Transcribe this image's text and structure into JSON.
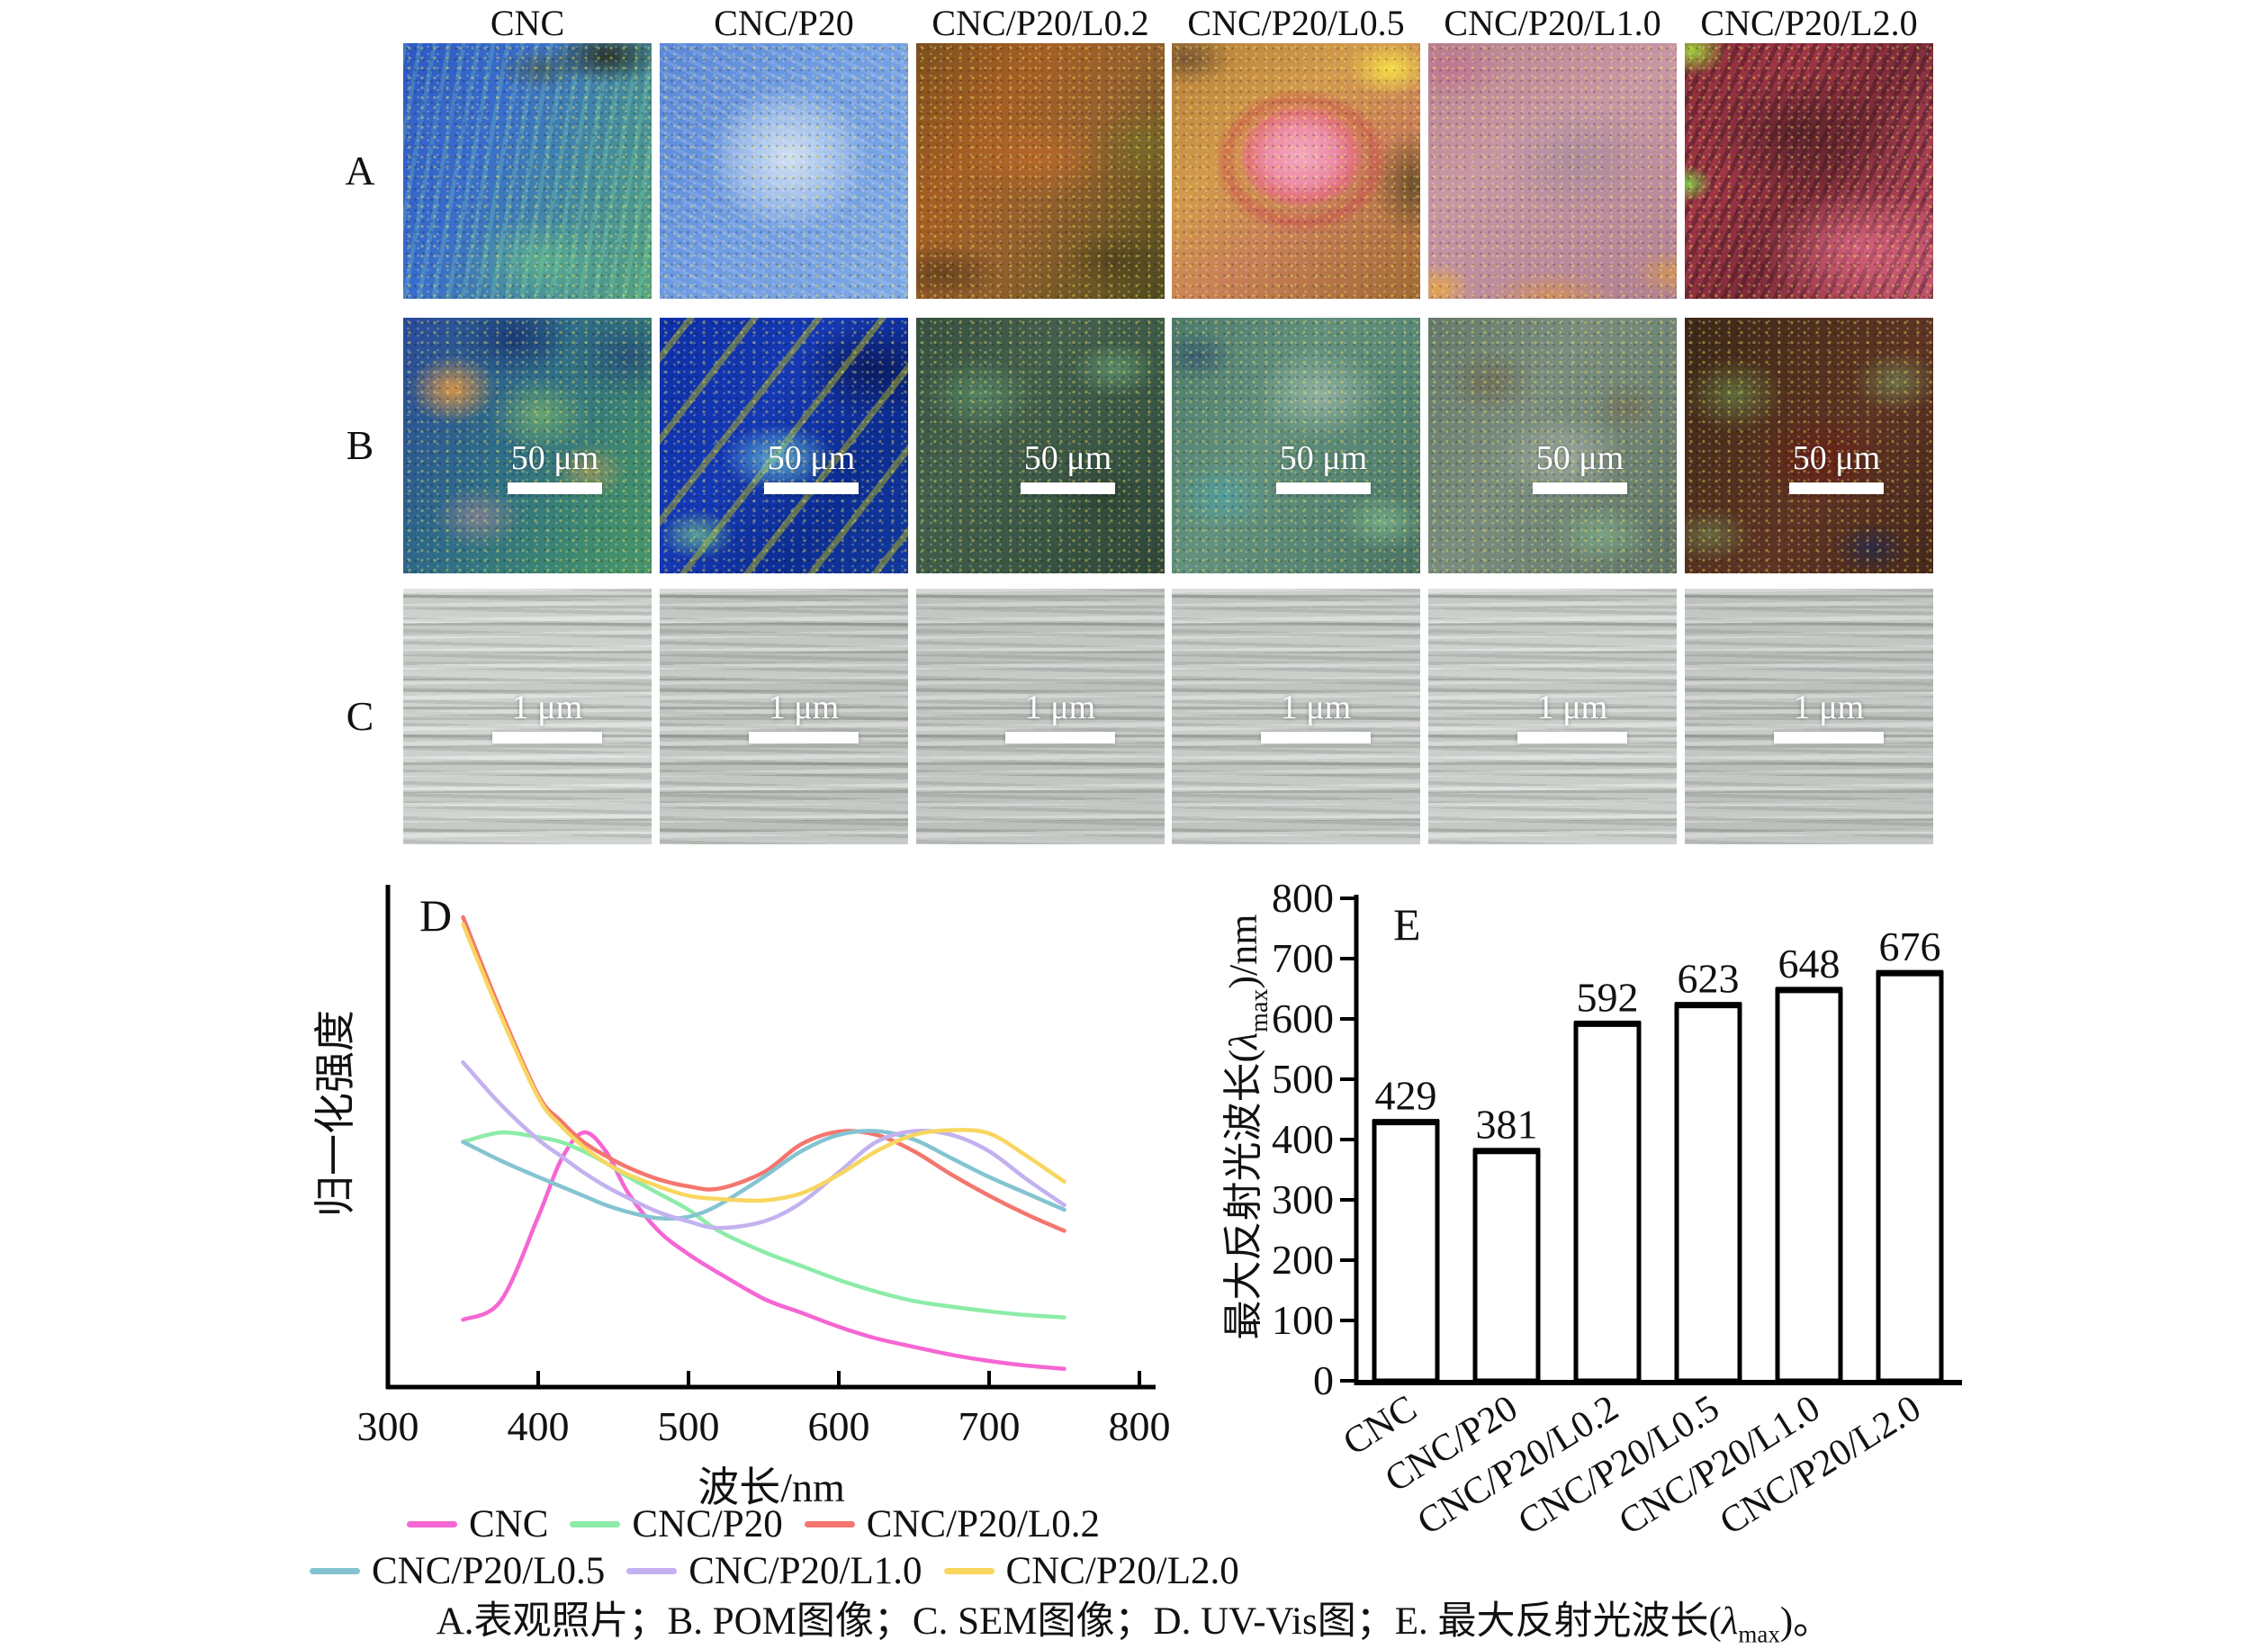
{
  "header": {
    "columns": [
      "CNC",
      "CNC/P20",
      "CNC/P20/L0.2",
      "CNC/P20/L0.5",
      "CNC/P20/L1.0",
      "CNC/P20/L2.0"
    ]
  },
  "rows": {
    "labels": [
      "A",
      "B",
      "C"
    ],
    "types": [
      "photo",
      "pom",
      "sem"
    ],
    "pom_scale_bar": "50 μm",
    "sem_scale_bar": "1 μm"
  },
  "panel_d": {
    "label": "D",
    "xlabel": "波长/nm",
    "ylabel": "归一化强度"
  },
  "panel_e": {
    "label": "E",
    "ylabel_prefix": "最大反射光波长(",
    "ylabel_lambda": "λ",
    "ylabel_sub": "max",
    "ylabel_suffix": ")/nm"
  },
  "caption": {
    "part1": "A.表观照片；B. POM图像；C. SEM图像；D. UV-Vis图；E. 最大反射光波长(",
    "lambda": "λ",
    "sub": "max",
    "part2": ")。"
  },
  "chart_data": [
    {
      "type": "line",
      "panel": "D",
      "xlabel": "波长/nm",
      "ylabel": "归一化强度",
      "xlim": [
        300,
        800
      ],
      "x_ticks": [
        300,
        400,
        500,
        600,
        700,
        800
      ],
      "grid": false,
      "x": [
        350,
        375,
        400,
        415,
        430,
        445,
        460,
        480,
        500,
        520,
        550,
        575,
        600,
        625,
        650,
        675,
        700,
        725,
        750
      ],
      "series": [
        {
          "name": "CNC",
          "color": "#f566d2",
          "peak_nm": 429,
          "values": [
            0.14,
            0.18,
            0.36,
            0.48,
            0.54,
            0.5,
            0.41,
            0.33,
            0.28,
            0.24,
            0.185,
            0.155,
            0.125,
            0.1,
            0.082,
            0.065,
            0.052,
            0.042,
            0.035
          ]
        },
        {
          "name": "CNC/P20",
          "color": "#8ceca8",
          "peak_nm": 381,
          "values": [
            0.52,
            0.54,
            0.53,
            0.52,
            0.5,
            0.475,
            0.445,
            0.41,
            0.375,
            0.33,
            0.285,
            0.255,
            0.225,
            0.2,
            0.18,
            0.168,
            0.158,
            0.15,
            0.145
          ]
        },
        {
          "name": "CNC/P20/L0.2",
          "color": "#f4766e",
          "peak_nm": 592,
          "values": [
            1.0,
            0.8,
            0.62,
            0.565,
            0.52,
            0.49,
            0.465,
            0.44,
            0.425,
            0.42,
            0.455,
            0.515,
            0.542,
            0.535,
            0.5,
            0.45,
            0.405,
            0.365,
            0.33
          ]
        },
        {
          "name": "CNC/P20/L0.5",
          "color": "#84c4d2",
          "peak_nm": 623,
          "values": [
            0.52,
            0.48,
            0.445,
            0.425,
            0.405,
            0.385,
            0.37,
            0.357,
            0.36,
            0.385,
            0.445,
            0.5,
            0.535,
            0.543,
            0.525,
            0.485,
            0.445,
            0.41,
            0.375
          ]
        },
        {
          "name": "CNC/P20/L1.0",
          "color": "#c4b1ef",
          "peak_nm": 648,
          "values": [
            0.69,
            0.6,
            0.525,
            0.49,
            0.455,
            0.425,
            0.4,
            0.37,
            0.35,
            0.336,
            0.35,
            0.39,
            0.455,
            0.52,
            0.543,
            0.535,
            0.5,
            0.44,
            0.385
          ]
        },
        {
          "name": "CNC/P20/L2.0",
          "color": "#f8d65f",
          "peak_nm": 676,
          "values": [
            0.985,
            0.79,
            0.615,
            0.555,
            0.51,
            0.475,
            0.45,
            0.425,
            0.405,
            0.398,
            0.395,
            0.41,
            0.45,
            0.5,
            0.535,
            0.545,
            0.538,
            0.49,
            0.435
          ]
        }
      ]
    },
    {
      "type": "bar",
      "panel": "E",
      "categories": [
        "CNC",
        "CNC/P20",
        "CNC/P20/L0.2",
        "CNC/P20/L0.5",
        "CNC/P20/L1.0",
        "CNC/P20/L2.0"
      ],
      "values": [
        429,
        381,
        592,
        623,
        648,
        676
      ],
      "ylabel": "最大反射光波长(λmax)/nm",
      "ylim": [
        0,
        800
      ],
      "y_ticks": [
        0,
        100,
        200,
        300,
        400,
        500,
        600,
        700,
        800
      ],
      "bar_fill": "#ffffff",
      "bar_stroke": "#000000",
      "grid": false
    }
  ]
}
